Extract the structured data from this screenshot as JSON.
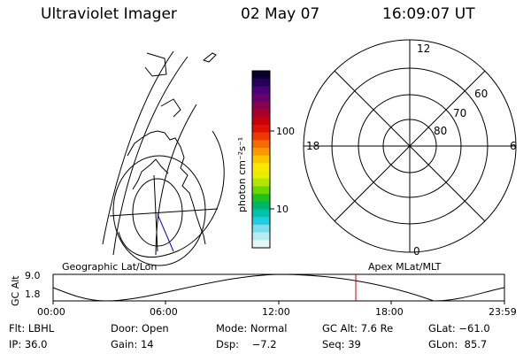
{
  "header": {
    "instrument": "Ultraviolet Imager",
    "date": "02 May 07",
    "time": "16:09:07 UT"
  },
  "left_panel": {
    "label": "Geographic Lat/Lon"
  },
  "colorbar": {
    "unit_label": "photon cm⁻²s⁻¹",
    "ticks": [
      "100",
      "10"
    ],
    "colors": [
      "#0a0030",
      "#24005a",
      "#4a0078",
      "#6a006e",
      "#8a0050",
      "#a8002c",
      "#c8000c",
      "#e01000",
      "#ee3800",
      "#f66a00",
      "#fb9a00",
      "#fdc400",
      "#fde800",
      "#e6ee00",
      "#b2e600",
      "#6ad800",
      "#1ec21a",
      "#00b66a",
      "#00c2b0",
      "#22cce0",
      "#7adcec",
      "#b8ecf2",
      "#e6f6f8"
    ]
  },
  "polar_plot": {
    "label": "Apex MLat/MLT",
    "mlt_labels": {
      "top": "12",
      "right": "6",
      "bottom": "0",
      "left": "18"
    },
    "lat_labels": [
      "60",
      "70",
      "80"
    ]
  },
  "timeline": {
    "ylabel": "GC Alt",
    "y_ticks": [
      "9.0",
      "1.8"
    ],
    "x_ticks": [
      "00:00",
      "06:00",
      "12:00",
      "18:00",
      "23:59"
    ],
    "marker_color": "#cc0000"
  },
  "footer": {
    "filter": "Flt: LBHL",
    "door": "Door: Open",
    "mode": "Mode: Normal",
    "gc_alt": "GC Alt: 7.6 Re",
    "glat": "GLat: −61.0",
    "ip": "IP: 36.0",
    "gain": "Gain: 14",
    "dsp": "Dsp:    −7.2",
    "seq": "Seq: 39",
    "glon": "GLon:  85.7"
  }
}
